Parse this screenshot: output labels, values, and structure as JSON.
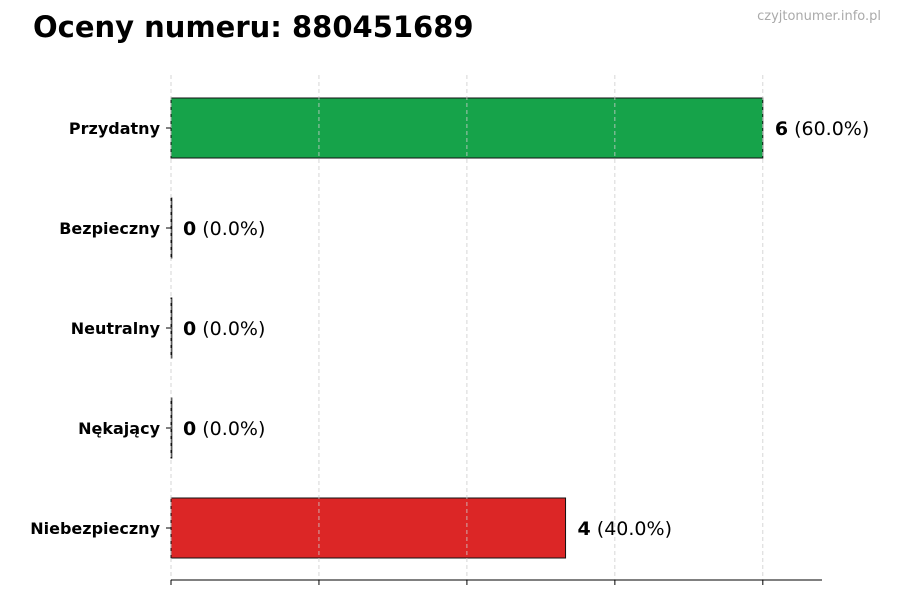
{
  "title": "Oceny numeru: 880451689",
  "watermark": "czyjtonumer.info.pl",
  "chart_data": {
    "type": "bar",
    "orientation": "horizontal",
    "title": "Oceny numeru: 880451689",
    "categories": [
      "Przydatny",
      "Bezpieczny",
      "Neutralny",
      "Nękający",
      "Niebezpieczny"
    ],
    "values": [
      6,
      0,
      0,
      0,
      4
    ],
    "percent_labels": [
      "(60.0%)",
      "(0.0%)",
      "(0.0%)",
      "(0.0%)",
      "(40.0%)"
    ],
    "colors": [
      "#16a34a",
      "#16a34a",
      "#9ca3af",
      "#dc2626",
      "#dc2626"
    ],
    "xlim": [
      0,
      6.6
    ],
    "xticks": [
      0,
      1.5,
      3,
      4.5,
      6
    ],
    "xtick_labels_visible": false,
    "grid": "x dashed",
    "xlabel": "",
    "ylabel": ""
  }
}
